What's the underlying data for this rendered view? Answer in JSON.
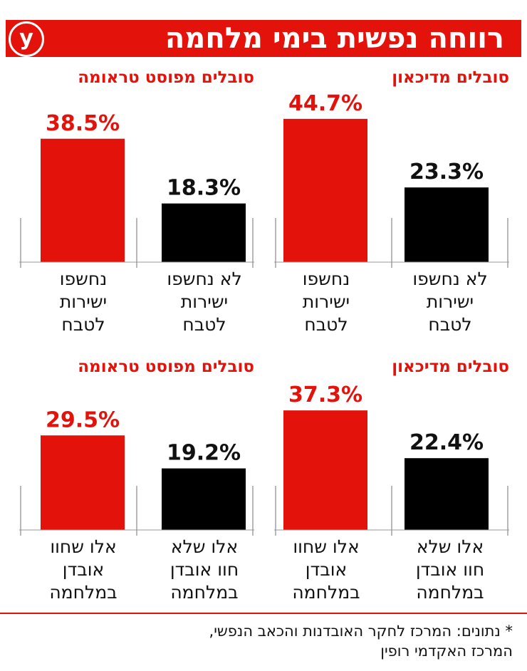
{
  "header": {
    "title": "רווחה נפשית בימי מלחמה",
    "logo": "y",
    "accent_color": "#e3120b"
  },
  "colors": {
    "exposed": "#e3120b",
    "not_exposed": "#000000",
    "text": "#111111"
  },
  "footnote": [
    "* נתונים: המרכז לחקר האובדנות והכאב הנפשי,",
    "המרכז האקדמי רופין"
  ],
  "chart_data": [
    {
      "type": "bar",
      "title": "סובלים מדיכאון",
      "categories": [
        "לא נחשפו ישירות לטבח",
        "נחשפו ישירות לטבח"
      ],
      "values": [
        23.3,
        44.7
      ],
      "labels": [
        "23.3%",
        "44.7%"
      ],
      "ylim": [
        0,
        55
      ],
      "colors": [
        "#000000",
        "#e3120b"
      ]
    },
    {
      "type": "bar",
      "title": "סובלים מפוסט טראומה",
      "categories": [
        "לא נחשפו ישירות לטבח",
        "נחשפו ישירות לטבח"
      ],
      "values": [
        18.3,
        38.5
      ],
      "labels": [
        "18.3%",
        "38.5%"
      ],
      "ylim": [
        0,
        55
      ],
      "colors": [
        "#000000",
        "#e3120b"
      ]
    },
    {
      "type": "bar",
      "title": "סובלים מדיכאון",
      "categories": [
        "אלו שלא חוו אובדן במלחמה",
        "אלו שחוו אובדן במלחמה"
      ],
      "values": [
        22.4,
        37.3
      ],
      "labels": [
        "22.4%",
        "37.3%"
      ],
      "ylim": [
        0,
        55
      ],
      "colors": [
        "#000000",
        "#e3120b"
      ]
    },
    {
      "type": "bar",
      "title": "סובלים מפוסט טראומה",
      "categories": [
        "אלו שלא חוו אובדן במלחמה",
        "אלו שחוו אובדן במלחמה"
      ],
      "values": [
        19.2,
        29.5
      ],
      "labels": [
        "19.2%",
        "29.5%"
      ],
      "ylim": [
        0,
        55
      ],
      "colors": [
        "#000000",
        "#e3120b"
      ]
    }
  ],
  "category_lines": [
    [
      [
        "לא נחשפו",
        "ישירות",
        "לטבח"
      ],
      [
        "נחשפו",
        "ישירות",
        "לטבח"
      ]
    ],
    [
      [
        "לא נחשפו",
        "ישירות",
        "לטבח"
      ],
      [
        "נחשפו",
        "ישירות",
        "לטבח"
      ]
    ],
    [
      [
        "אלו שלא",
        "חוו אובדן",
        "במלחמה"
      ],
      [
        "אלו שחוו",
        "אובדן",
        "במלחמה"
      ]
    ],
    [
      [
        "אלו שלא",
        "חוו אובדן",
        "במלחמה"
      ],
      [
        "אלו שחוו",
        "אובדן",
        "במלחמה"
      ]
    ]
  ]
}
